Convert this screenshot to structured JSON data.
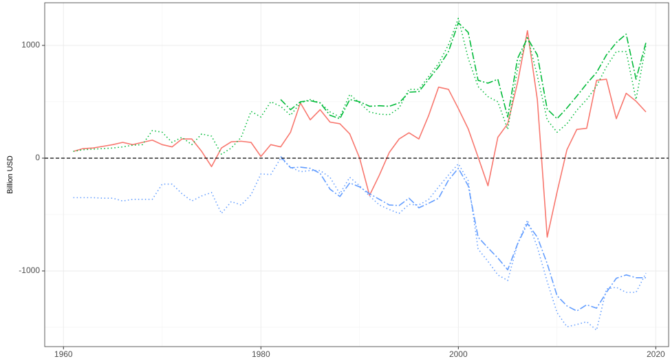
{
  "chart_data": {
    "type": "line",
    "y_label": "Billion USD",
    "x": [
      1961,
      1962,
      1963,
      1964,
      1965,
      1966,
      1967,
      1968,
      1969,
      1970,
      1971,
      1972,
      1973,
      1974,
      1975,
      1976,
      1977,
      1978,
      1979,
      1980,
      1981,
      1982,
      1983,
      1984,
      1985,
      1986,
      1987,
      1988,
      1989,
      1990,
      1991,
      1992,
      1993,
      1994,
      1995,
      1996,
      1997,
      1998,
      1999,
      2000,
      2001,
      2002,
      2003,
      2004,
      2005,
      2006,
      2007,
      2008,
      2009,
      2010,
      2011,
      2012,
      2013,
      2014,
      2015,
      2016,
      2017,
      2018,
      2019
    ],
    "series": [
      {
        "color": "#F8766D",
        "dash": "solid",
        "values": [
          60,
          85,
          90,
          105,
          120,
          140,
          120,
          140,
          160,
          120,
          100,
          170,
          170,
          60,
          -75,
          90,
          145,
          150,
          140,
          15,
          120,
          100,
          230,
          490,
          340,
          430,
          320,
          305,
          215,
          0,
          -330,
          -150,
          50,
          170,
          225,
          170,
          380,
          630,
          610,
          440,
          260,
          10,
          -245,
          185,
          305,
          670,
          1130,
          520,
          -700,
          -300,
          75,
          255,
          265,
          690,
          700,
          350,
          575,
          505,
          410
        ]
      },
      {
        "color": "#00BA38",
        "dash": "dotdash",
        "values": [
          null,
          null,
          null,
          null,
          null,
          null,
          null,
          null,
          null,
          null,
          null,
          null,
          null,
          null,
          null,
          null,
          null,
          null,
          null,
          null,
          null,
          520,
          430,
          500,
          510,
          490,
          380,
          350,
          520,
          500,
          460,
          465,
          460,
          490,
          585,
          590,
          700,
          810,
          945,
          1200,
          1115,
          690,
          665,
          700,
          365,
          885,
          1065,
          915,
          435,
          350,
          445,
          550,
          660,
          760,
          915,
          1025,
          1100,
          700,
          1025
        ]
      },
      {
        "color": "#00BA38",
        "dash": "dotted",
        "values": [
          60,
          75,
          80,
          85,
          90,
          100,
          115,
          120,
          245,
          230,
          140,
          185,
          120,
          215,
          195,
          35,
          90,
          185,
          415,
          365,
          500,
          460,
          380,
          490,
          520,
          490,
          410,
          365,
          565,
          490,
          410,
          390,
          385,
          445,
          610,
          610,
          725,
          840,
          1005,
          1240,
          885,
          635,
          545,
          500,
          255,
          795,
          1080,
          730,
          340,
          230,
          305,
          425,
          520,
          640,
          810,
          945,
          945,
          520,
          1005
        ]
      },
      {
        "color": "#619CFF",
        "dash": "dotdash",
        "values": [
          null,
          null,
          null,
          null,
          null,
          null,
          null,
          null,
          null,
          null,
          null,
          null,
          null,
          null,
          null,
          null,
          null,
          null,
          null,
          null,
          null,
          15,
          -85,
          -80,
          -90,
          -135,
          -275,
          -340,
          -220,
          -255,
          -315,
          -365,
          -415,
          -420,
          -355,
          -440,
          -400,
          -355,
          -195,
          -90,
          -245,
          -700,
          -795,
          -885,
          -990,
          -760,
          -580,
          -700,
          -935,
          -1220,
          -1310,
          -1355,
          -1300,
          -1330,
          -1190,
          -1065,
          -1035,
          -1060,
          -1060
        ]
      },
      {
        "color": "#619CFF",
        "dash": "dotted",
        "values": [
          -350,
          -350,
          -350,
          -355,
          -355,
          -380,
          -365,
          -365,
          -365,
          -230,
          -230,
          -315,
          -380,
          -335,
          -305,
          -490,
          -385,
          -415,
          -325,
          -140,
          -145,
          0,
          -80,
          -120,
          -110,
          -110,
          -170,
          -315,
          -170,
          -245,
          -335,
          -415,
          -455,
          -490,
          -410,
          -415,
          -365,
          -255,
          -150,
          -50,
          -200,
          -805,
          -915,
          -1035,
          -1085,
          -760,
          -550,
          -790,
          -1095,
          -1370,
          -1495,
          -1475,
          -1450,
          -1525,
          -1160,
          -1145,
          -1190,
          -1190,
          -1020
        ]
      }
    ],
    "hline": 0,
    "xlim": [
      1958.1,
      2021.3
    ],
    "ylim": [
      -1671,
      1378
    ],
    "xticks": [
      1960,
      1980,
      2000,
      2020
    ],
    "yticks": [
      -1000,
      0,
      1000
    ],
    "grid": true
  }
}
